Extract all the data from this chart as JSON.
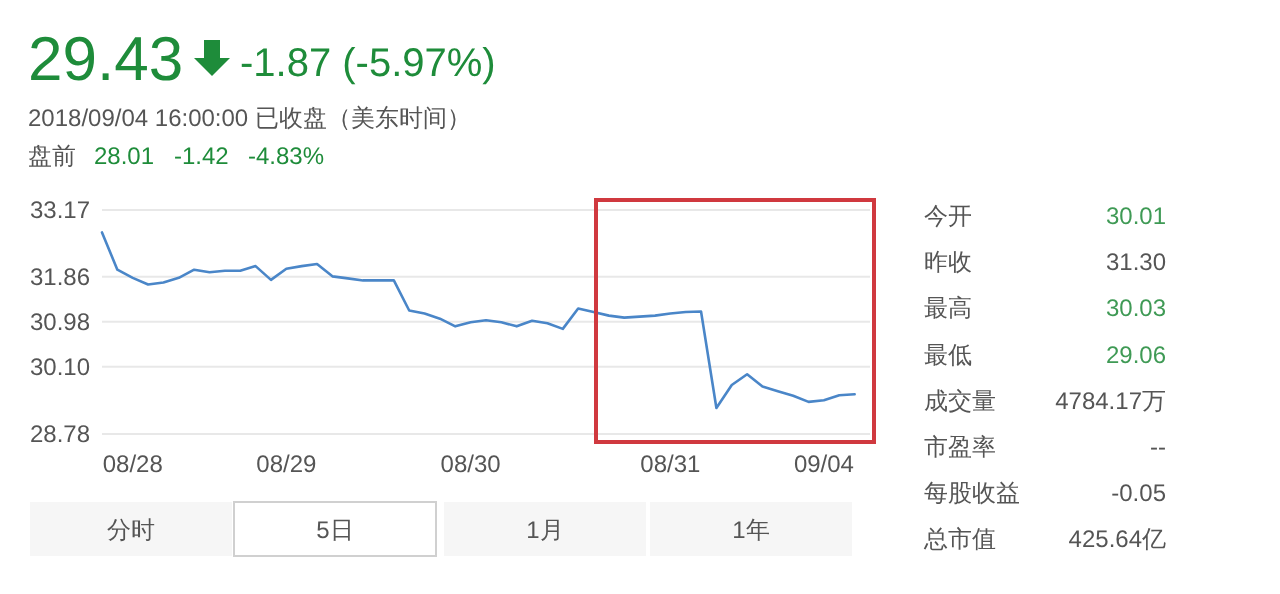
{
  "chart_data": [
    {
      "type": "other",
      "annotations": [
        "29.43",
        "-1.87 (-5.97%)",
        "2018/09/04 16:00:00 已收盘（美东时间）",
        "盘前",
        "28.01",
        "-1.42",
        "-4.83%"
      ]
    },
    {
      "type": "line",
      "categories": [
        null,
        null,
        "08/28",
        null,
        null,
        null,
        null,
        null,
        null,
        null,
        null,
        null,
        "08/29",
        null,
        null,
        null,
        null,
        null,
        null,
        null,
        null,
        null,
        null,
        null,
        "08/30",
        null,
        null,
        null,
        null,
        null,
        null,
        null,
        null,
        null,
        null,
        null,
        null,
        "08/31",
        null,
        null,
        null,
        null,
        null,
        null,
        null,
        null,
        null,
        "09/04",
        null,
        null
      ],
      "series": [
        {
          "color": "#4a86c8",
          "values": [
            32.73,
            32.0,
            31.84,
            31.71,
            31.75,
            31.84,
            32.0,
            31.95,
            31.98,
            31.98,
            32.07,
            31.8,
            32.02,
            32.07,
            32.11,
            31.87,
            31.83,
            31.79,
            31.79,
            31.79,
            31.2,
            31.14,
            31.04,
            30.89,
            30.97,
            31.01,
            30.97,
            30.89,
            31.0,
            30.95,
            30.84,
            31.24,
            31.17,
            31.1,
            31.06,
            31.08,
            31.1,
            31.14,
            31.17,
            31.18,
            29.29,
            29.74,
            29.95,
            29.71,
            29.62,
            29.53,
            29.41,
            29.44,
            29.54,
            29.56
          ]
        }
      ],
      "ylim": [
        28.78,
        33.17
      ],
      "yticks": [
        28.78,
        {
          "value": 30.1,
          "label": "30.10"
        },
        30.98,
        31.86,
        33.17
      ],
      "grid": "y",
      "line_style": "solid"
    },
    {
      "type": "other",
      "annotations": [
        "今开",
        "30.01",
        "昨收",
        "31.30",
        "最高",
        "30.03",
        "最低",
        "29.06",
        "成交量",
        "4784.17万",
        "市盈率",
        "--",
        "每股收益",
        "-0.05",
        "总市值",
        "425.64亿"
      ]
    },
    {
      "type": "other",
      "annotations": [
        "分时",
        "5日",
        "1月",
        "1年"
      ]
    }
  ]
}
